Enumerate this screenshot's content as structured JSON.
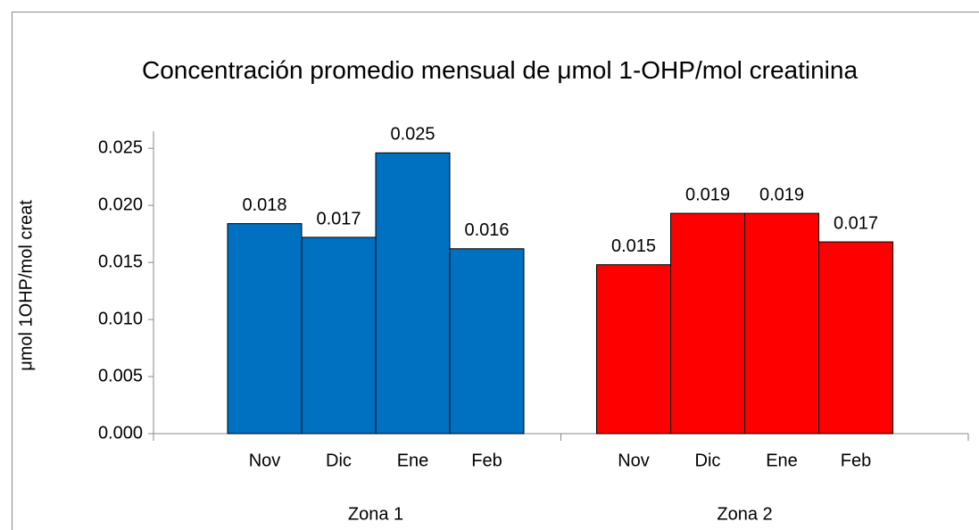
{
  "chart_data": {
    "type": "bar",
    "title": "Concentración promedio mensual de μmol 1-OHP/mol creatinina",
    "y_label": "μmol 1OHP/mol creat",
    "categories": [
      "Nov",
      "Dic",
      "Ene",
      "Feb"
    ],
    "series": [
      {
        "name": "Zona 1",
        "color": "#0070c0",
        "values": [
          0.0184,
          0.0172,
          0.0246,
          0.0162
        ],
        "value_labels": [
          "0.018",
          "0.017",
          "0.025",
          "0.016"
        ]
      },
      {
        "name": "Zona 2",
        "color": "#ff0000",
        "values": [
          0.0148,
          0.0193,
          0.0193,
          0.0168
        ],
        "value_labels": [
          "0.015",
          "0.019",
          "0.019",
          "0.017"
        ]
      }
    ],
    "ylim": [
      0,
      0.0265
    ],
    "yticks": [
      {
        "value": 0,
        "label": "0.000"
      },
      0.005,
      {
        "value": 0.01,
        "label": "0.010"
      },
      0.015,
      {
        "value": 0.02,
        "label": "0.020"
      },
      0.025
    ],
    "grid": false
  }
}
